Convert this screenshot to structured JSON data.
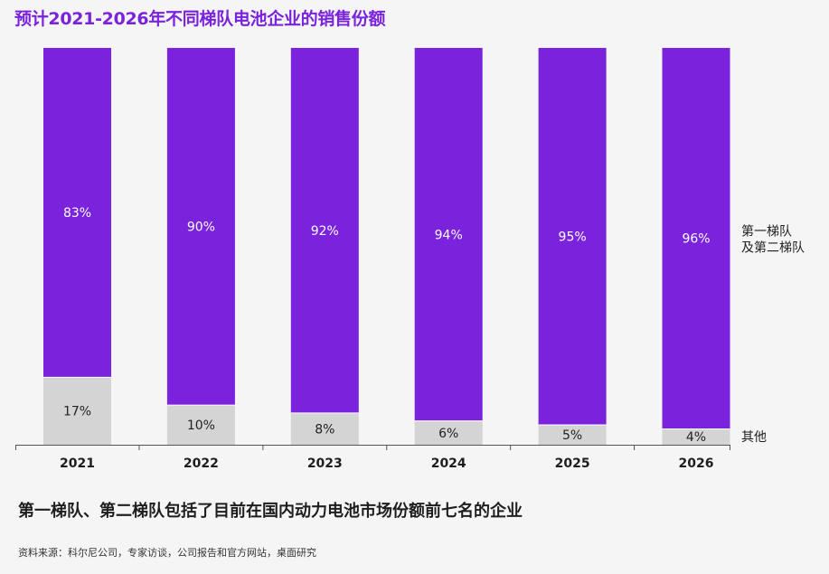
{
  "header": {
    "title": "预计2021-2026年不同梯队电池企业的销售份额"
  },
  "footer": {
    "note": "第一梯队、第二梯队包括了目前在国内动力电池市场份额前七名的企业",
    "source": "资料来源：科尔尼公司，专家访谈，公司报告和官方网站，桌面研究"
  },
  "colors": {
    "top_tier": "#7a22dc",
    "others": "#d4d4d4",
    "top_label": "#ffffff",
    "other_label": "#222222",
    "axis": "#555555"
  },
  "chart_data": {
    "type": "bar",
    "stacked": true,
    "normalized": true,
    "title": "预计2021-2026年不同梯队电池企业的销售份额",
    "categories": [
      "2021",
      "2022",
      "2023",
      "2024",
      "2025",
      "2026"
    ],
    "series": [
      {
        "name": "其他",
        "values": [
          17,
          10,
          8,
          6,
          5,
          4
        ],
        "labels": [
          "17%",
          "10%",
          "8%",
          "6%",
          "5%",
          "4%"
        ]
      },
      {
        "name": "第一梯队\n及第二梯队",
        "values": [
          83,
          90,
          92,
          94,
          95,
          96
        ],
        "labels": [
          "83%",
          "90%",
          "92%",
          "94%",
          "95%",
          "96%"
        ]
      }
    ],
    "legend_lines": {
      "top_tier": [
        "第一梯队",
        "及第二梯队"
      ],
      "others": [
        "其他"
      ]
    },
    "legend_position": "right",
    "unit": "%",
    "ylim": [
      0,
      100
    ],
    "xlabel": "",
    "ylabel": ""
  }
}
